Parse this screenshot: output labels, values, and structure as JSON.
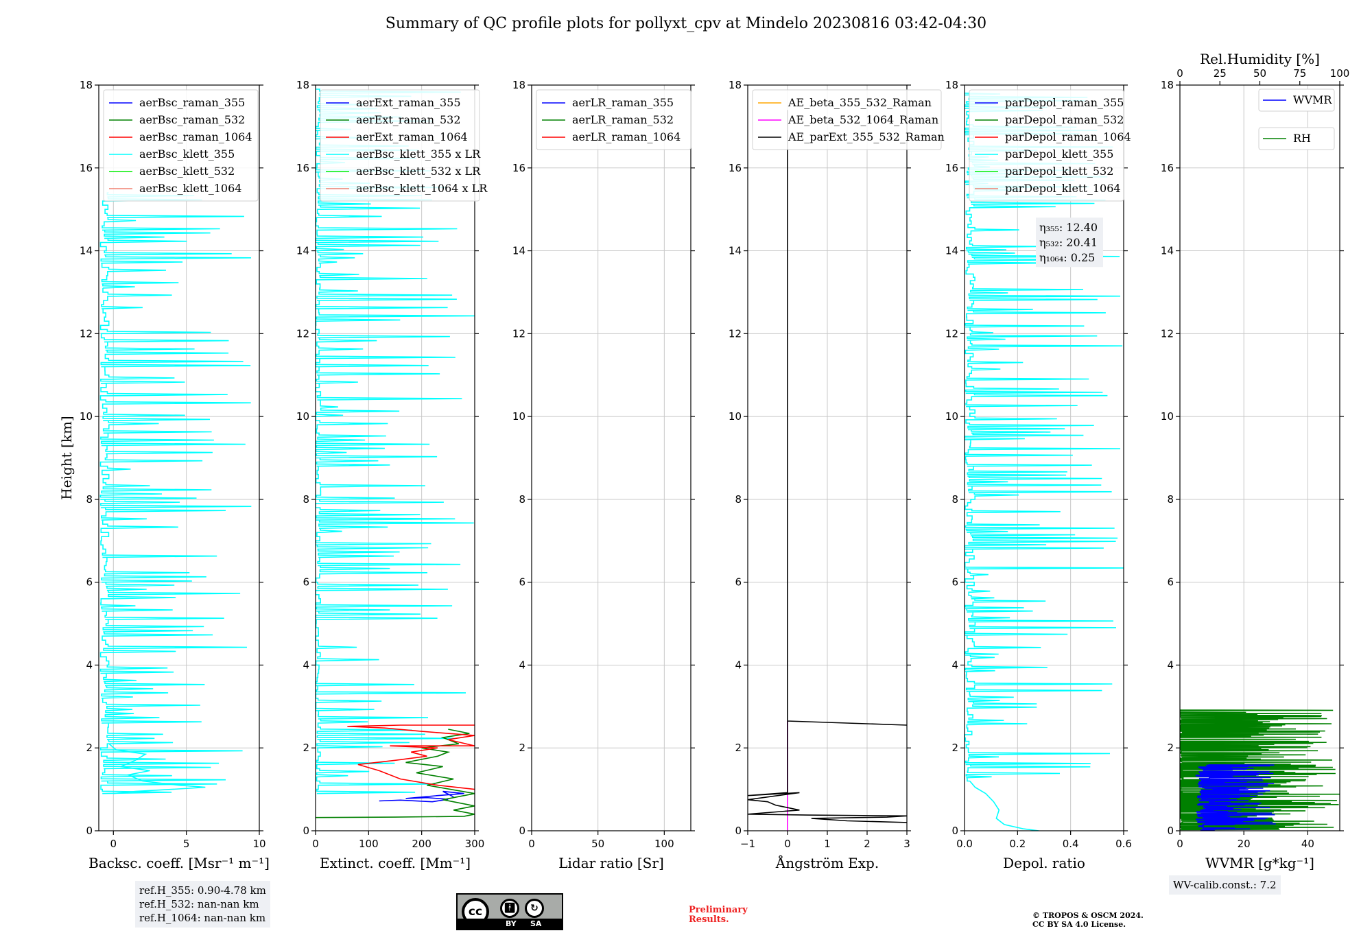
{
  "figure": {
    "title": "Summary of QC profile plots for pollyxt_cpv at Mindelo 20230816 03:42-04:30",
    "ylabel": "Height [km]"
  },
  "chart_data": [
    {
      "id": "bsc",
      "type": "line",
      "xlabel": "Backsc. coeff. [Msr⁻¹ m⁻¹]",
      "xlim": [
        -1,
        10
      ],
      "ylim": [
        0,
        18
      ],
      "xticks": [
        0,
        5,
        10
      ],
      "xticklabels": [
        "0",
        "5",
        "10"
      ],
      "yticks": [
        0,
        2,
        4,
        6,
        8,
        10,
        12,
        14,
        16,
        18
      ],
      "legend": [
        {
          "label": "aerBsc_raman_355",
          "color": "#0000ff"
        },
        {
          "label": "aerBsc_raman_532",
          "color": "#008000"
        },
        {
          "label": "aerBsc_raman_1064",
          "color": "#ff0000"
        },
        {
          "label": "aerBsc_klett_355",
          "color": "#00ffff"
        },
        {
          "label": "aerBsc_klett_532",
          "color": "#00ee00"
        },
        {
          "label": "aerBsc_klett_1064",
          "color": "#f08070"
        }
      ],
      "series": [
        {
          "name": "aerBsc_klett_355",
          "color": "#00ffff",
          "noise": {
            "seed": 11,
            "y0": 0.9,
            "y1": 15.4,
            "step": 0.1,
            "base": -0.6,
            "baseJit": 0.6,
            "spikeProb": 0.55,
            "spikeMin": 1.0,
            "spikeMax": 9.5
          }
        },
        {
          "name": "aerBsc_klett_355 (near-range)",
          "color": "#00ffff",
          "points": [
            [
              0.0,
              0.9
            ],
            [
              1.5,
              0.95
            ],
            [
              4.0,
              1.0
            ],
            [
              6.3,
              1.05
            ],
            [
              4.5,
              1.1
            ],
            [
              2.0,
              1.2
            ],
            [
              1.0,
              1.35
            ],
            [
              2.5,
              1.45
            ],
            [
              0.5,
              1.55
            ],
            [
              1.5,
              1.7
            ],
            [
              2.2,
              1.85
            ],
            [
              0.2,
              1.95
            ],
            [
              -0.3,
              2.1
            ]
          ]
        }
      ]
    },
    {
      "id": "ext",
      "type": "line",
      "xlabel": "Extinct. coeff. [Mm⁻¹]",
      "xlim": [
        0,
        300
      ],
      "ylim": [
        0,
        18
      ],
      "xticks": [
        0,
        100,
        200,
        300
      ],
      "xticklabels": [
        "0",
        "100",
        "200",
        "300"
      ],
      "yticks": [
        0,
        2,
        4,
        6,
        8,
        10,
        12,
        14,
        16,
        18
      ],
      "legend": [
        {
          "label": "aerExt_raman_355",
          "color": "#0000ff"
        },
        {
          "label": "aerExt_raman_532",
          "color": "#008000"
        },
        {
          "label": "aerExt_raman_1064",
          "color": "#ff0000"
        },
        {
          "label": "aerBsc_klett_355 x LR",
          "color": "#00ffff"
        },
        {
          "label": "aerBsc_klett_532 x LR",
          "color": "#00ee00"
        },
        {
          "label": "aerBsc_klett_1064 x LR",
          "color": "#f08070"
        }
      ],
      "series": [
        {
          "name": "aerBsc_klett_355 x LR",
          "color": "#00ffff",
          "noise": {
            "seed": 23,
            "y0": 0.9,
            "y1": 17.9,
            "step": 0.1,
            "base": 5,
            "baseJit": 10,
            "spikeProb": 0.6,
            "spikeMin": 40,
            "spikeMax": 300
          }
        },
        {
          "name": "aerExt_raman_355",
          "color": "#0000ff",
          "points": [
            [
              120,
              0.72
            ],
            [
              160,
              0.74
            ],
            [
              220,
              0.7
            ],
            [
              250,
              0.76
            ],
            [
              210,
              0.8
            ],
            [
              170,
              0.78
            ],
            [
              230,
              0.85
            ],
            [
              280,
              0.9
            ],
            [
              240,
              0.95
            ],
            [
              260,
              0.82
            ]
          ]
        },
        {
          "name": "aerExt_raman_532",
          "color": "#008000",
          "points": [
            [
              0,
              0.32
            ],
            [
              150,
              0.33
            ],
            [
              280,
              0.35
            ],
            [
              300,
              0.4
            ],
            [
              260,
              0.5
            ],
            [
              300,
              0.6
            ],
            [
              240,
              0.75
            ],
            [
              300,
              0.9
            ],
            [
              210,
              1.1
            ],
            [
              260,
              1.25
            ],
            [
              190,
              1.4
            ],
            [
              240,
              1.55
            ],
            [
              170,
              1.65
            ],
            [
              230,
              1.8
            ],
            [
              250,
              1.9
            ],
            [
              200,
              2.0
            ],
            [
              270,
              2.1
            ],
            [
              240,
              2.25
            ],
            [
              290,
              2.35
            ],
            [
              250,
              2.45
            ]
          ]
        },
        {
          "name": "aerExt_raman_1064",
          "color": "#ff0000",
          "points": [
            [
              300,
              1.0
            ],
            [
              230,
              1.1
            ],
            [
              160,
              1.25
            ],
            [
              120,
              1.45
            ],
            [
              80,
              1.6
            ],
            [
              150,
              1.7
            ],
            [
              210,
              1.8
            ],
            [
              180,
              1.9
            ],
            [
              230,
              2.0
            ],
            [
              140,
              2.05
            ],
            [
              300,
              2.05
            ],
            [
              250,
              2.2
            ],
            [
              300,
              2.3
            ],
            [
              200,
              2.4
            ],
            [
              130,
              2.48
            ],
            [
              60,
              2.52
            ],
            [
              160,
              2.55
            ],
            [
              300,
              2.55
            ]
          ]
        }
      ]
    },
    {
      "id": "lr",
      "type": "line",
      "xlabel": "Lidar ratio [Sr]",
      "xlim": [
        0,
        120
      ],
      "ylim": [
        0,
        18
      ],
      "xticks": [
        0,
        50,
        100
      ],
      "xticklabels": [
        "0",
        "50",
        "100"
      ],
      "yticks": [
        0,
        2,
        4,
        6,
        8,
        10,
        12,
        14,
        16,
        18
      ],
      "legend": [
        {
          "label": "aerLR_raman_355",
          "color": "#0000ff"
        },
        {
          "label": "aerLR_raman_532",
          "color": "#008000"
        },
        {
          "label": "aerLR_raman_1064",
          "color": "#ff0000"
        }
      ],
      "series": []
    },
    {
      "id": "ae",
      "type": "line",
      "xlabel": "Ångström Exp.",
      "xlim": [
        -1,
        3
      ],
      "ylim": [
        0,
        18
      ],
      "xticks": [
        -1,
        0,
        1,
        2,
        3
      ],
      "xticklabels": [
        "−1",
        "0",
        "1",
        "2",
        "3"
      ],
      "yticks": [
        0,
        2,
        4,
        6,
        8,
        10,
        12,
        14,
        16,
        18
      ],
      "legend": [
        {
          "label": "AE_beta_355_532_Raman",
          "color": "#ffa500"
        },
        {
          "label": "AE_beta_532_1064_Raman",
          "color": "#ff00ff"
        },
        {
          "label": "AE_parExt_355_532_Raman",
          "color": "#000000"
        }
      ],
      "series": [
        {
          "name": "AE_beta_532_1064_Raman",
          "color": "#ff00ff",
          "points": [
            [
              0,
              0
            ],
            [
              0,
              2.65
            ]
          ]
        },
        {
          "name": "AE_parExt_355_532_Raman",
          "color": "#000000",
          "points": [
            [
              3,
              0.2
            ],
            [
              1.5,
              0.24
            ],
            [
              0.6,
              0.3
            ],
            [
              2.5,
              0.33
            ],
            [
              3,
              0.36
            ],
            [
              0.5,
              0.38
            ],
            [
              -1,
              0.4
            ],
            [
              0.3,
              0.5
            ],
            [
              -0.3,
              0.62
            ],
            [
              -0.5,
              0.7
            ],
            [
              -1,
              0.75
            ],
            [
              0.3,
              0.92
            ],
            [
              -1,
              0.85
            ],
            [
              0,
              0.92
            ],
            [
              0,
              17.4
            ],
            [
              0,
              16.4
            ],
            [
              0,
              2.65
            ],
            [
              3,
              2.55
            ]
          ]
        }
      ]
    },
    {
      "id": "depol",
      "type": "line",
      "xlabel": "Depol. ratio",
      "xlim": [
        0,
        0.6
      ],
      "ylim": [
        0,
        18
      ],
      "xticks": [
        0,
        0.2,
        0.4,
        0.6
      ],
      "xticklabels": [
        "0.0",
        "0.2",
        "0.4",
        "0.6"
      ],
      "yticks": [
        0,
        2,
        4,
        6,
        8,
        10,
        12,
        14,
        16,
        18
      ],
      "legend": [
        {
          "label": "parDepol_raman_355",
          "color": "#0000ff"
        },
        {
          "label": "parDepol_raman_532",
          "color": "#008000"
        },
        {
          "label": "parDepol_raman_1064",
          "color": "#ff0000"
        },
        {
          "label": "parDepol_klett_355",
          "color": "#00ffff"
        },
        {
          "label": "parDepol_klett_532",
          "color": "#00ee00"
        },
        {
          "label": "parDepol_klett_1064",
          "color": "#f08070"
        }
      ],
      "annotation": {
        "lines": [
          "η₃₅₅: 12.40",
          "η₅₃₂: 20.41",
          "η₁₀₆₄: 0.25"
        ]
      },
      "series": [
        {
          "name": "parDepol_klett_355",
          "color": "#00ffff",
          "noise": {
            "seed": 37,
            "y0": 1.2,
            "y1": 17.8,
            "step": 0.08,
            "base": 0.02,
            "baseJit": 0.04,
            "spikeProb": 0.55,
            "spikeMin": 0.08,
            "spikeMax": 0.6
          }
        },
        {
          "name": "parDepol_klett_355 (near-range)",
          "color": "#00ffff",
          "points": [
            [
              0.28,
              0
            ],
            [
              0.22,
              0.05
            ],
            [
              0.15,
              0.15
            ],
            [
              0.12,
              0.3
            ],
            [
              0.13,
              0.5
            ],
            [
              0.11,
              0.7
            ],
            [
              0.08,
              0.9
            ],
            [
              0.04,
              1.05
            ],
            [
              0.02,
              1.2
            ]
          ]
        }
      ]
    },
    {
      "id": "wv",
      "type": "line",
      "xlabel": "WVMR [g*kg⁻¹]",
      "xlim": [
        0,
        50
      ],
      "ylim": [
        0,
        18
      ],
      "xticks": [
        0,
        20,
        40
      ],
      "xticklabels": [
        "0",
        "20",
        "40"
      ],
      "yticks": [
        0,
        2,
        4,
        6,
        8,
        10,
        12,
        14,
        16,
        18
      ],
      "top_axis": {
        "label": "Rel.Humidity [%]",
        "ticks": [
          "0",
          "25",
          "50",
          "75",
          "100"
        ]
      },
      "legend": [
        {
          "label": "WVMR",
          "color": "#0000ff"
        },
        {
          "label": "RH",
          "color": "#008000"
        }
      ],
      "calib_note": "WV-calib.const.: 7.2",
      "series": [
        {
          "name": "RH",
          "color": "#008000",
          "noise": {
            "seed": 51,
            "y0": 0.0,
            "y1": 2.9,
            "step": 0.025,
            "base": 0,
            "baseJit": 2,
            "spikeProb": 0.9,
            "spikeMin": 20,
            "spikeMax": 50
          }
        },
        {
          "name": "WVMR",
          "color": "#0000ff",
          "noise": {
            "seed": 63,
            "y0": 0.0,
            "y1": 1.6,
            "step": 0.02,
            "base": 8,
            "baseJit": 6,
            "spikeProb": 0.8,
            "spikeMin": 14,
            "spikeMax": 30
          }
        }
      ]
    }
  ],
  "notes": {
    "ref_heights": [
      "ref.H_355: 0.90-4.78 km",
      "ref.H_532: nan-nan km",
      "ref.H_1064: nan-nan km"
    ],
    "preliminary": [
      "Preliminary",
      "Results."
    ],
    "copyright": [
      "© TROPOS & OSCM 2024.",
      "CC BY SA 4.0 License."
    ],
    "license_badge": {
      "cc": "cc",
      "by": "BY",
      "sa": "SA"
    }
  }
}
